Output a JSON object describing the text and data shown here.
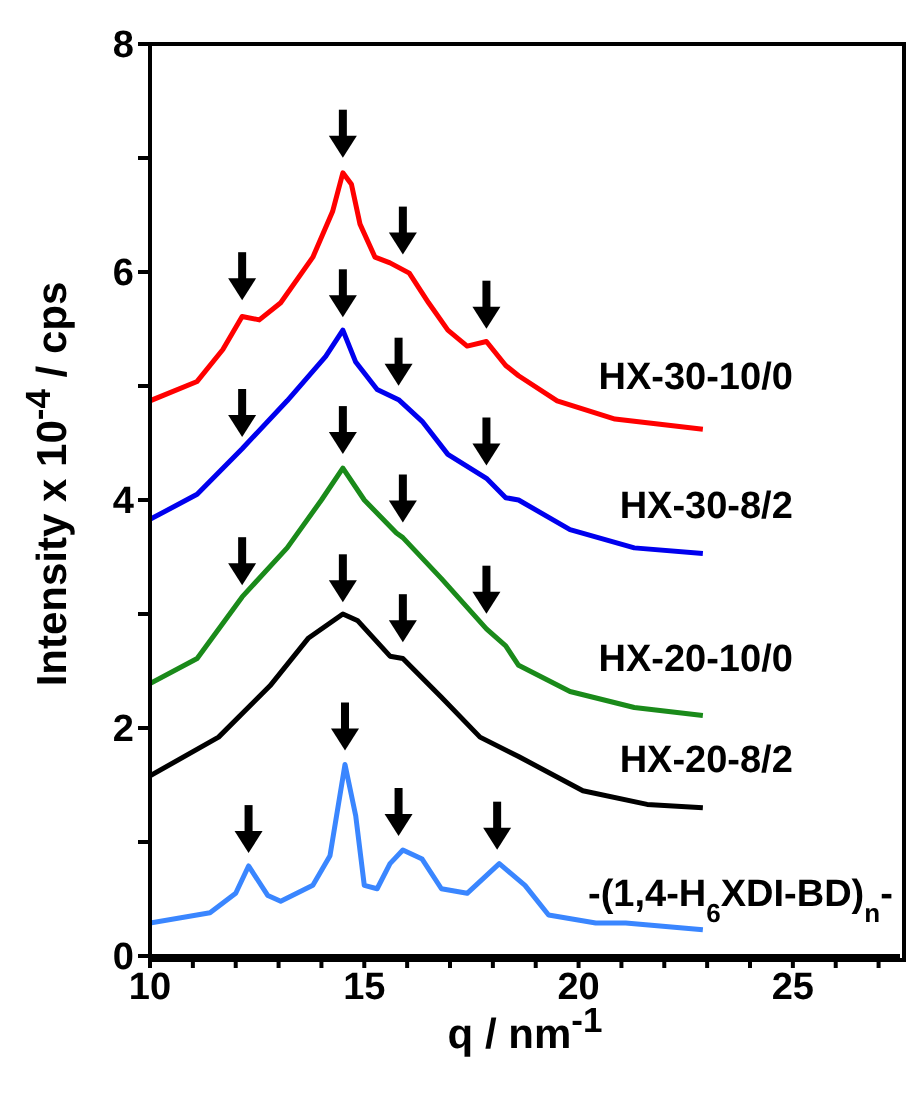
{
  "chart_data": {
    "type": "line",
    "xlabel": "q / nm$^{-1}$",
    "ylabel": "Intensity x 10$^{-4}$ / cps",
    "xlim": [
      10,
      27.5
    ],
    "ylim": [
      0,
      8
    ],
    "xticks": [
      10,
      {
        "value": 11,
        "label": null
      },
      {
        "value": 12,
        "label": null
      },
      {
        "value": 13,
        "label": null
      },
      {
        "value": 14,
        "label": null
      },
      15,
      {
        "value": 16,
        "label": null
      },
      {
        "value": 17,
        "label": null
      },
      {
        "value": 18,
        "label": null
      },
      {
        "value": 19,
        "label": null
      },
      20,
      {
        "value": 21,
        "label": null
      },
      {
        "value": 22,
        "label": null
      },
      {
        "value": 23,
        "label": null
      },
      {
        "value": 24,
        "label": null
      },
      25,
      {
        "value": 26,
        "label": null
      },
      {
        "value": 27,
        "label": null
      }
    ],
    "yticks": [
      0,
      {
        "value": 1,
        "label": null
      },
      2,
      {
        "value": 3,
        "label": null
      },
      4,
      {
        "value": 5,
        "label": null
      },
      6,
      {
        "value": 7,
        "label": null
      },
      8
    ],
    "marker": "none",
    "line_style": "solid",
    "series": [
      {
        "name": "HX-30-10/0",
        "color": "#ff0000",
        "x": [
          10,
          11.1,
          11.7,
          12.15,
          12.55,
          13.05,
          13.8,
          14.26,
          14.5,
          14.7,
          14.9,
          15.25,
          15.6,
          16.05,
          16.5,
          16.95,
          17.4,
          17.85,
          18.3,
          18.6,
          19.5,
          20.85,
          22.9
        ],
        "values": [
          4.87,
          5.04,
          5.32,
          5.61,
          5.58,
          5.73,
          6.13,
          6.53,
          6.87,
          6.77,
          6.42,
          6.13,
          6.08,
          5.99,
          5.73,
          5.49,
          5.35,
          5.39,
          5.18,
          5.09,
          4.87,
          4.71,
          4.62
        ]
      },
      {
        "name": "HX-30-8/2",
        "color": "#0000ee",
        "x": [
          10,
          11.1,
          12.15,
          13.2,
          14.1,
          14.5,
          14.8,
          15.3,
          15.8,
          16.35,
          16.95,
          17.85,
          18.3,
          18.6,
          19.8,
          21.3,
          22.9
        ],
        "values": [
          3.83,
          4.05,
          4.45,
          4.87,
          5.26,
          5.49,
          5.21,
          4.97,
          4.88,
          4.69,
          4.4,
          4.19,
          4.02,
          4.0,
          3.74,
          3.58,
          3.53
        ]
      },
      {
        "name": "HX-20-10/0",
        "color": "#1a8a1a",
        "x": [
          10,
          11.1,
          12.15,
          13.2,
          14.0,
          14.5,
          15.0,
          15.75,
          15.9,
          16.8,
          17.85,
          18.3,
          18.6,
          19.8,
          21.3,
          22.9
        ],
        "values": [
          2.39,
          2.61,
          3.15,
          3.58,
          4.0,
          4.28,
          4.0,
          3.71,
          3.67,
          3.31,
          2.87,
          2.72,
          2.55,
          2.32,
          2.18,
          2.11
        ]
      },
      {
        "name": "HX-20-8/2",
        "color": "#000000",
        "x": [
          10,
          11.6,
          12.8,
          13.7,
          14.5,
          14.85,
          15.6,
          15.9,
          16.8,
          17.7,
          18.6,
          20.1,
          21.6,
          22.9
        ],
        "values": [
          1.58,
          1.92,
          2.37,
          2.79,
          3.0,
          2.94,
          2.63,
          2.61,
          2.27,
          1.92,
          1.75,
          1.45,
          1.33,
          1.3
        ]
      },
      {
        "name": "-(1,4-H$_{6}$XDI-BD)$_{n}$-",
        "color": "#3a86ff",
        "x": [
          10,
          11.4,
          12.0,
          12.3,
          12.75,
          13.05,
          13.8,
          14.2,
          14.55,
          14.8,
          15.0,
          15.3,
          15.6,
          15.9,
          16.35,
          16.8,
          17.4,
          18.15,
          18.75,
          19.3,
          20.4,
          21.1,
          22.9
        ],
        "values": [
          0.29,
          0.38,
          0.55,
          0.79,
          0.53,
          0.48,
          0.62,
          0.88,
          1.68,
          1.23,
          0.62,
          0.59,
          0.81,
          0.93,
          0.85,
          0.59,
          0.55,
          0.81,
          0.62,
          0.36,
          0.29,
          0.29,
          0.23
        ]
      }
    ]
  }
}
